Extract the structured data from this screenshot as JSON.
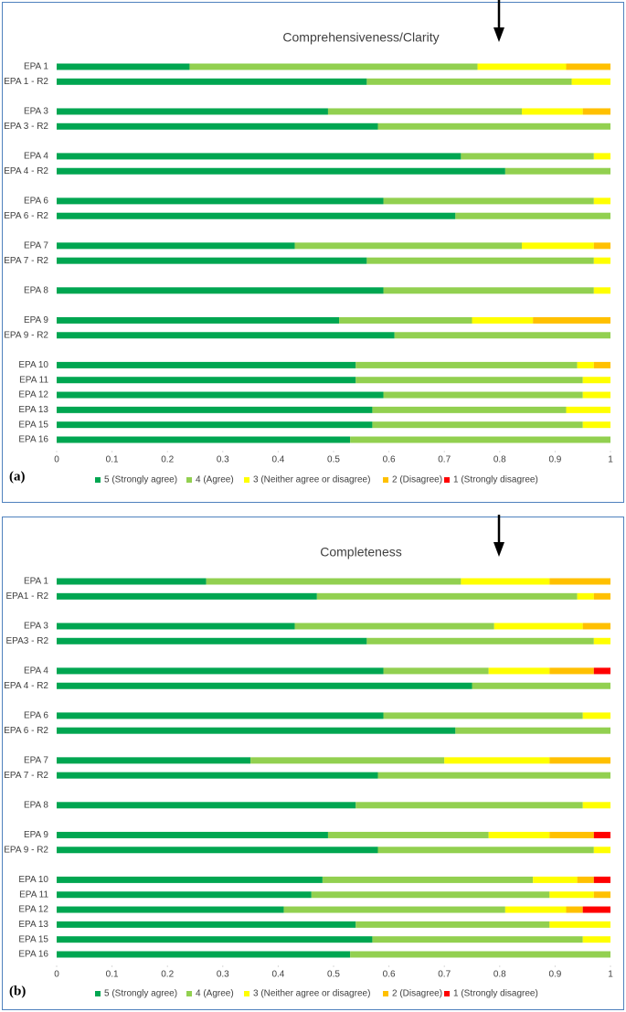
{
  "chart_data": [
    {
      "type": "stacked-bar-horizontal",
      "title": "Comprehensiveness/Clarity",
      "panel_label": "(a)",
      "categories": [
        "EPA 1",
        "EPA 1 - R2",
        null,
        "EPA 3",
        "EPA 3 - R2",
        null,
        "EPA 4",
        "EPA 4 - R2",
        null,
        "EPA 6",
        "EPA 6 - R2",
        null,
        "EPA 7",
        "EPA 7 - R2",
        null,
        "EPA 8",
        null,
        "EPA 9",
        "EPA 9 - R2",
        null,
        "EPA 10",
        "EPA 11",
        "EPA 12",
        "EPA 13",
        "EPA 15",
        "EPA 16"
      ],
      "series": [
        {
          "name": "5 (Strongly agree)",
          "color": "#00a651",
          "values": [
            0.24,
            0.56,
            null,
            0.49,
            0.58,
            null,
            0.73,
            0.81,
            null,
            0.59,
            0.72,
            null,
            0.43,
            0.56,
            null,
            0.59,
            null,
            0.51,
            0.61,
            null,
            0.54,
            0.54,
            0.59,
            0.57,
            0.57,
            0.53
          ]
        },
        {
          "name": "4 (Agree)",
          "color": "#92d050",
          "values": [
            0.52,
            0.37,
            null,
            0.35,
            0.42,
            null,
            0.24,
            0.19,
            null,
            0.38,
            0.28,
            null,
            0.41,
            0.41,
            null,
            0.38,
            null,
            0.24,
            0.39,
            null,
            0.4,
            0.41,
            0.36,
            0.35,
            0.38,
            0.47
          ]
        },
        {
          "name": "3 (Neither agree or disagree)",
          "color": "#ffff00",
          "values": [
            0.16,
            0.07,
            null,
            0.11,
            0,
            null,
            0.03,
            0,
            null,
            0.03,
            0,
            null,
            0.13,
            0.03,
            null,
            0.03,
            null,
            0.11,
            0,
            null,
            0.03,
            0.05,
            0.05,
            0.08,
            0.05,
            0
          ]
        },
        {
          "name": "2 (Disagree)",
          "color": "#ffc000",
          "values": [
            0.08,
            0,
            null,
            0.05,
            0,
            null,
            0,
            0,
            null,
            0,
            0,
            null,
            0.03,
            0,
            null,
            0,
            null,
            0.14,
            0,
            null,
            0.03,
            0,
            0,
            0,
            0,
            0
          ]
        },
        {
          "name": "1 (Strongly disagree)",
          "color": "#ff0000",
          "values": [
            0,
            0,
            null,
            0,
            0,
            null,
            0,
            0,
            null,
            0,
            0,
            null,
            0,
            0,
            null,
            0,
            null,
            0,
            0,
            null,
            0,
            0,
            0,
            0,
            0,
            0
          ]
        }
      ],
      "xlim": [
        0,
        1
      ],
      "xticks": [
        0,
        0.1,
        0.2,
        0.3,
        0.4,
        0.5,
        0.6,
        0.7,
        0.8,
        0.9,
        1
      ]
    },
    {
      "type": "stacked-bar-horizontal",
      "title": "Completeness",
      "panel_label": "(b)",
      "categories": [
        "EPA 1",
        "EPA1 - R2",
        null,
        "EPA 3",
        "EPA3 - R2",
        null,
        "EPA 4",
        "EPA 4 - R2",
        null,
        "EPA 6",
        "EPA 6 - R2",
        null,
        "EPA 7",
        "EPA 7 - R2",
        null,
        "EPA 8",
        null,
        "EPA 9",
        "EPA 9 - R2",
        null,
        "EPA 10",
        "EPA 11",
        "EPA 12",
        "EPA 13",
        "EPA 15",
        "EPA 16"
      ],
      "series": [
        {
          "name": "5 (Strongly agree)",
          "color": "#00a651",
          "values": [
            0.27,
            0.47,
            null,
            0.43,
            0.56,
            null,
            0.59,
            0.75,
            null,
            0.59,
            0.72,
            null,
            0.35,
            0.58,
            null,
            0.54,
            null,
            0.49,
            0.58,
            null,
            0.48,
            0.46,
            0.41,
            0.54,
            0.57,
            0.53
          ]
        },
        {
          "name": "4 (Agree)",
          "color": "#92d050",
          "values": [
            0.46,
            0.47,
            null,
            0.36,
            0.41,
            null,
            0.19,
            0.25,
            null,
            0.36,
            0.28,
            null,
            0.35,
            0.42,
            null,
            0.41,
            null,
            0.29,
            0.39,
            null,
            0.38,
            0.43,
            0.4,
            0.35,
            0.38,
            0.47
          ]
        },
        {
          "name": "3 (Neither agree or disagree)",
          "color": "#ffff00",
          "values": [
            0.16,
            0.03,
            null,
            0.16,
            0.03,
            null,
            0.11,
            0,
            null,
            0.05,
            0,
            null,
            0.19,
            0,
            null,
            0.05,
            null,
            0.11,
            0.03,
            null,
            0.08,
            0.08,
            0.11,
            0.11,
            0.05,
            0
          ]
        },
        {
          "name": "2 (Disagree)",
          "color": "#ffc000",
          "values": [
            0.11,
            0.03,
            null,
            0.05,
            0,
            null,
            0.08,
            0,
            null,
            0,
            0,
            null,
            0.11,
            0,
            null,
            0,
            null,
            0.08,
            0,
            null,
            0.03,
            0.03,
            0.03,
            0,
            0,
            0
          ]
        },
        {
          "name": "1 (Strongly disagree)",
          "color": "#ff0000",
          "values": [
            0,
            0,
            null,
            0,
            0,
            null,
            0.03,
            0,
            null,
            0,
            0,
            null,
            0,
            0,
            null,
            0,
            null,
            0.03,
            0,
            null,
            0.03,
            0,
            0.05,
            0,
            0,
            0
          ]
        }
      ],
      "xlim": [
        0,
        1
      ],
      "xticks": [
        0,
        0.1,
        0.2,
        0.3,
        0.4,
        0.5,
        0.6,
        0.7,
        0.8,
        0.9,
        1
      ]
    }
  ]
}
